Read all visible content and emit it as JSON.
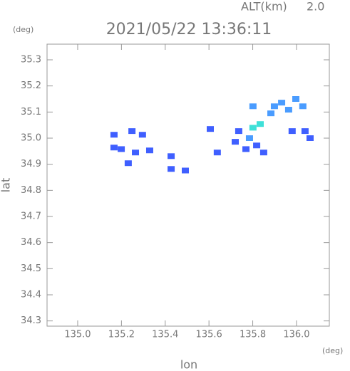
{
  "chart_data": {
    "type": "scatter",
    "title": "2021/05/22 13:36:11",
    "altitude_label": "ALT(km)",
    "altitude": "2.0",
    "y_unit": "(deg)",
    "x_unit": "(deg)",
    "x_label": "lon",
    "y_label": "lat",
    "xlim": [
      134.86,
      136.15
    ],
    "ylim": [
      34.28,
      35.36
    ],
    "xticks": [
      {
        "value": 135.0,
        "label": "135.0"
      },
      {
        "value": 135.2,
        "label": "135.2"
      },
      {
        "value": 135.4,
        "label": "135.4"
      },
      {
        "value": 135.6,
        "label": "135.6"
      },
      {
        "value": 135.8,
        "label": "135.8"
      },
      {
        "value": 136.0,
        "label": "136.0"
      }
    ],
    "yticks": [
      {
        "value": 34.3,
        "label": "34.3"
      },
      {
        "value": 34.4,
        "label": "34.4"
      },
      {
        "value": 34.5,
        "label": "34.5"
      },
      {
        "value": 34.6,
        "label": "34.6"
      },
      {
        "value": 34.7,
        "label": "34.7"
      },
      {
        "value": 34.8,
        "label": "34.8"
      },
      {
        "value": 34.9,
        "label": "34.9"
      },
      {
        "value": 35.0,
        "label": "35.0"
      },
      {
        "value": 35.1,
        "label": "35.1"
      },
      {
        "value": 35.2,
        "label": "35.2"
      },
      {
        "value": 35.3,
        "label": "35.3"
      }
    ],
    "series": [
      {
        "color": "#3f5fff",
        "x": [
          135.166,
          135.248,
          135.296,
          135.199,
          135.264,
          135.329,
          135.166,
          135.231,
          135.427,
          135.427,
          135.492,
          135.606,
          135.638,
          135.736,
          135.769,
          135.818,
          135.85,
          135.72,
          136.039,
          136.062,
          135.98
        ],
        "values": [
          35.013,
          35.027,
          35.013,
          34.958,
          34.945,
          34.953,
          34.964,
          34.904,
          34.931,
          34.882,
          34.876,
          35.035,
          34.945,
          35.027,
          34.958,
          34.972,
          34.945,
          34.986,
          35.027,
          35.0,
          35.027
        ]
      },
      {
        "color": "#4a9cff",
        "x": [
          135.785,
          135.883,
          135.899,
          135.932,
          135.964,
          135.997,
          136.029,
          135.801
        ],
        "values": [
          35.0,
          35.095,
          35.122,
          35.136,
          35.109,
          35.15,
          35.122,
          35.122
        ]
      },
      {
        "color": "#3fe0d8",
        "x": [
          135.801,
          135.834
        ],
        "values": [
          35.04,
          35.054
        ]
      }
    ]
  }
}
